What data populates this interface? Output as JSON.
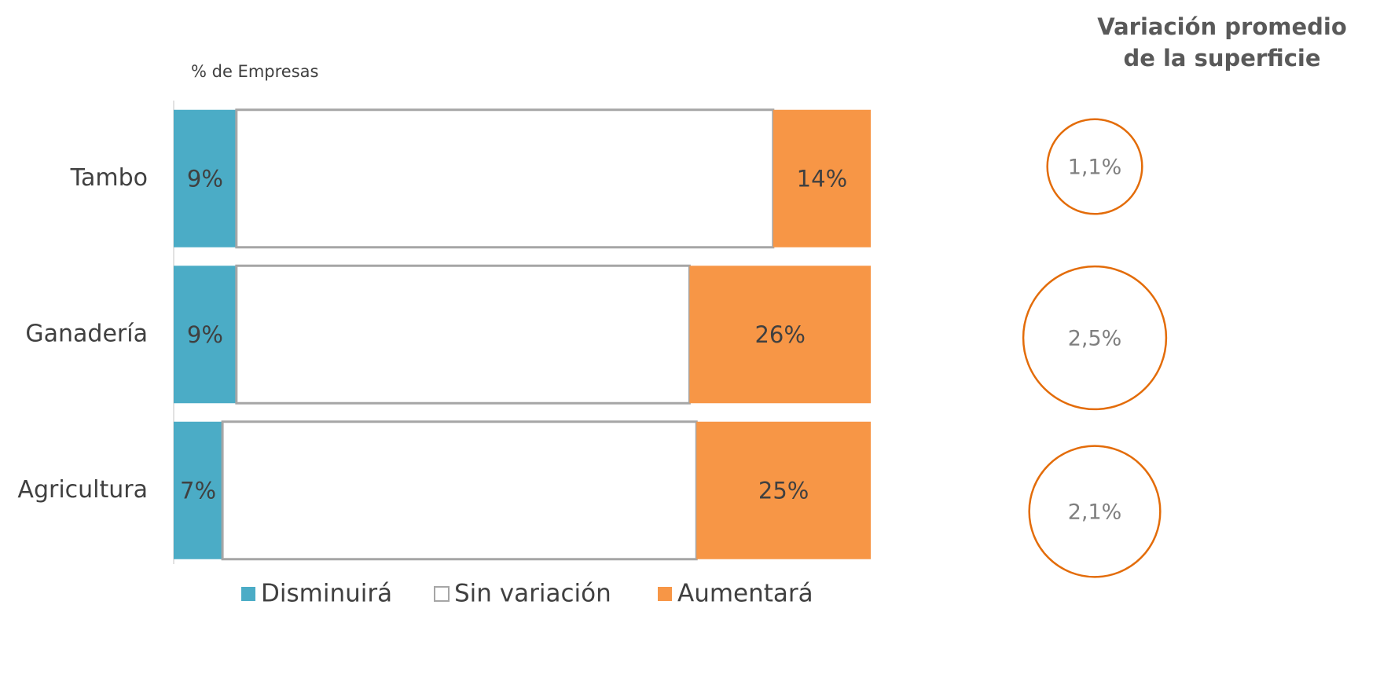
{
  "chart_data": [
    {
      "type": "stacked_bar_horizontal",
      "axis_label": "% de Empresas",
      "categories": [
        "Tambo",
        "Ganadería",
        "Agricultura"
      ],
      "xlim": [
        0,
        100
      ],
      "series": [
        {
          "name": "Disminuirá",
          "color": "#4bacc6",
          "values": [
            9,
            9,
            7
          ],
          "value_labels": [
            "9%",
            "9%",
            "7%"
          ]
        },
        {
          "name": "Sin variación",
          "color": "#ffffff",
          "stroke": "#a6a6a6",
          "values": [
            77,
            65,
            68
          ]
        },
        {
          "name": "Aumentará",
          "color": "#f79646",
          "values": [
            14,
            26,
            25
          ],
          "value_labels": [
            "14%",
            "26%",
            "25%"
          ]
        }
      ],
      "legend": "bottom"
    },
    {
      "type": "bubble",
      "title": "Variación promedio de la superficie",
      "values": [
        1.1,
        2.5,
        2.1
      ],
      "value_labels": [
        "1,1%",
        "2,5%",
        "2,1%"
      ],
      "color": "#e36c09"
    }
  ]
}
